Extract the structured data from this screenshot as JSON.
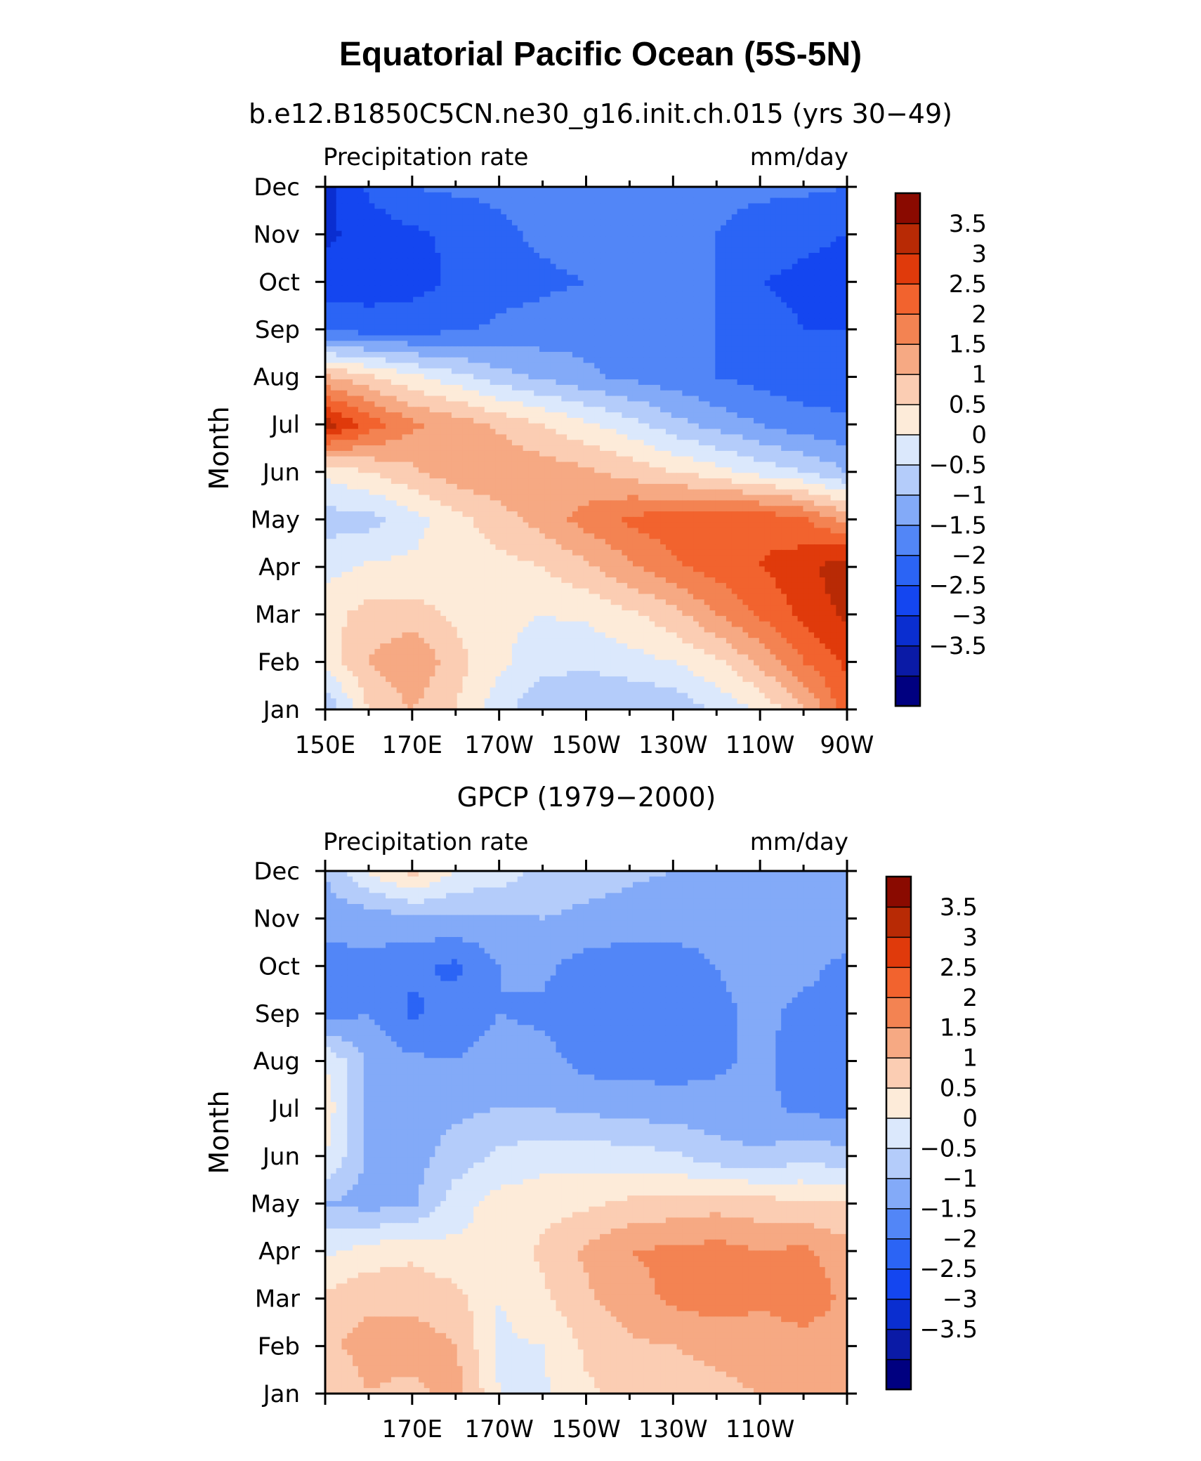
{
  "main_title": "Equatorial Pacific Ocean (5S-5N)",
  "chart_data": [
    {
      "type": "heatmap",
      "title": "b.e12.B1850C5CN.ne30_g16.init.ch.015 (yrs 30−49)",
      "left_label": "Precipitation rate",
      "right_label": "mm/day",
      "ylabel": "Month",
      "xlabel": "",
      "y_ticks": [
        "Jan",
        "Feb",
        "Mar",
        "Apr",
        "May",
        "Jun",
        "Jul",
        "Aug",
        "Sep",
        "Oct",
        "Nov",
        "Dec"
      ],
      "x_ticks": [
        "150E",
        "170E",
        "170W",
        "150W",
        "130W",
        "110W",
        "90W"
      ],
      "x_tick_positions_deg_east": [
        150,
        170,
        190,
        210,
        230,
        250,
        270
      ],
      "x_range_deg_east": [
        150,
        270
      ],
      "colorbar_levels": [
        "3.5",
        "3",
        "2.5",
        "2",
        "1.5",
        "1",
        "0.5",
        "0",
        "−0.5",
        "−1",
        "−1.5",
        "−2",
        "−2.5",
        "−3",
        "−3.5"
      ],
      "grid_lon_deg_east": [
        150,
        160,
        170,
        180,
        190,
        200,
        210,
        220,
        230,
        240,
        250,
        260,
        270
      ],
      "grid_months": [
        "Jan",
        "Feb",
        "Mar",
        "Apr",
        "May",
        "Jun",
        "Jul",
        "Aug",
        "Sep",
        "Oct",
        "Nov",
        "Dec"
      ],
      "values": [
        [
          -0.5,
          1.0,
          1.5,
          1.0,
          0.2,
          -0.4,
          -0.5,
          -0.5,
          -0.4,
          0.1,
          0.6,
          1.4,
          2.8
        ],
        [
          0.7,
          1.5,
          2.0,
          1.2,
          0.6,
          0.2,
          0.1,
          0.3,
          0.5,
          0.9,
          1.6,
          2.5,
          3.1
        ],
        [
          0.8,
          1.2,
          1.2,
          0.9,
          0.6,
          0.5,
          0.6,
          0.9,
          1.3,
          2.0,
          2.6,
          3.1,
          3.6
        ],
        [
          0.3,
          0.6,
          0.6,
          0.7,
          0.8,
          1.0,
          1.4,
          1.9,
          2.4,
          2.7,
          3.0,
          3.3,
          3.9
        ],
        [
          -0.2,
          -0.2,
          0.3,
          0.8,
          1.3,
          1.7,
          2.2,
          2.6,
          2.8,
          2.9,
          2.9,
          2.6,
          1.8
        ],
        [
          0.6,
          1.0,
          1.4,
          1.8,
          1.9,
          1.8,
          1.6,
          1.3,
          1.0,
          0.7,
          0.3,
          0.0,
          -0.5
        ],
        [
          3.8,
          2.8,
          2.1,
          1.8,
          1.4,
          1.0,
          0.6,
          0.2,
          -0.3,
          -0.7,
          -1.0,
          -1.3,
          -1.4
        ],
        [
          1.6,
          1.1,
          0.6,
          0.2,
          -0.3,
          -0.6,
          -0.9,
          -1.1,
          -1.3,
          -1.5,
          -1.7,
          -1.8,
          -1.8
        ],
        [
          -1.7,
          -1.7,
          -1.7,
          -1.6,
          -1.4,
          -1.3,
          -1.2,
          -1.2,
          -1.3,
          -1.5,
          -1.8,
          -2.0,
          -2.0
        ],
        [
          -2.2,
          -2.3,
          -2.2,
          -1.9,
          -1.7,
          -1.6,
          -1.5,
          -1.4,
          -1.4,
          -1.5,
          -2.0,
          -2.1,
          -2.2
        ],
        [
          -2.6,
          -2.3,
          -2.1,
          -1.9,
          -1.6,
          -1.4,
          -1.3,
          -1.3,
          -1.4,
          -1.5,
          -1.7,
          -1.9,
          -2.0
        ],
        [
          -2.7,
          -1.9,
          -1.5,
          -1.4,
          -1.4,
          -1.4,
          -1.4,
          -1.4,
          -1.4,
          -1.4,
          -1.4,
          -1.4,
          -1.5
        ]
      ]
    },
    {
      "type": "heatmap",
      "title": "GPCP (1979−2000)",
      "left_label": "Precipitation rate",
      "right_label": "mm/day",
      "ylabel": "Month",
      "xlabel": "",
      "y_ticks": [
        "Jan",
        "Feb",
        "Mar",
        "Apr",
        "May",
        "Jun",
        "Jul",
        "Aug",
        "Sep",
        "Oct",
        "Nov",
        "Dec"
      ],
      "x_ticks": [
        "170E",
        "170W",
        "150W",
        "130W",
        "110W"
      ],
      "x_tick_positions_deg_east": [
        170,
        190,
        210,
        230,
        250
      ],
      "x_range_deg_east": [
        150,
        270
      ],
      "colorbar_levels": [
        "3.5",
        "3",
        "2.5",
        "2",
        "1.5",
        "1",
        "0.5",
        "0",
        "−0.5",
        "−1",
        "−1.5",
        "−2",
        "−2.5",
        "−3",
        "−3.5"
      ],
      "grid_lon_deg_east": [
        150,
        160,
        170,
        180,
        190,
        200,
        210,
        220,
        230,
        240,
        250,
        260,
        270
      ],
      "grid_months": [
        "Jan",
        "Feb",
        "Mar",
        "Apr",
        "May",
        "Jun",
        "Jul",
        "Aug",
        "Sep",
        "Oct",
        "Nov",
        "Dec"
      ],
      "values": [
        [
          1.0,
          1.5,
          1.3,
          1.8,
          0.5,
          0.4,
          0.9,
          1.2,
          1.3,
          1.4,
          1.5,
          1.6,
          1.6
        ],
        [
          1.4,
          1.7,
          1.8,
          1.5,
          0.4,
          0.5,
          1.1,
          1.4,
          1.5,
          1.6,
          1.7,
          1.8,
          1.7
        ],
        [
          1.1,
          1.4,
          1.3,
          1.2,
          0.5,
          0.9,
          1.4,
          1.8,
          2.1,
          2.3,
          2.1,
          2.3,
          1.9
        ],
        [
          0.4,
          0.7,
          0.9,
          0.6,
          0.6,
          1.1,
          1.6,
          2.0,
          2.1,
          2.2,
          2.0,
          2.1,
          1.7
        ],
        [
          -0.5,
          -0.7,
          -0.6,
          0.3,
          0.7,
          0.8,
          0.9,
          1.1,
          1.2,
          1.3,
          1.2,
          1.1,
          1.0
        ],
        [
          0.5,
          -0.6,
          -0.7,
          -0.3,
          0.1,
          0.3,
          0.3,
          0.2,
          0.1,
          -0.3,
          -0.4,
          -0.2,
          -0.3
        ],
        [
          0.8,
          -0.6,
          -0.7,
          -0.6,
          -0.5,
          -0.5,
          -0.6,
          -0.7,
          -0.8,
          -0.8,
          -0.9,
          -1.1,
          -1.2
        ],
        [
          0.5,
          -0.6,
          -0.9,
          -1.0,
          -0.8,
          -0.8,
          -1.2,
          -1.2,
          -1.2,
          -1.1,
          -0.9,
          -1.2,
          -1.3
        ],
        [
          -1.2,
          -1.0,
          -1.6,
          -1.3,
          -1.0,
          -1.1,
          -1.3,
          -1.3,
          -1.2,
          -1.1,
          -0.9,
          -1.1,
          -1.1
        ],
        [
          -1.2,
          -1.1,
          -1.4,
          -1.6,
          -1.0,
          -0.9,
          -1.2,
          -1.3,
          -1.2,
          -1.0,
          -0.8,
          -0.9,
          -1.1
        ],
        [
          -0.8,
          -0.8,
          -0.6,
          -0.6,
          -0.6,
          -0.5,
          -0.6,
          -0.7,
          -0.8,
          -0.8,
          -0.8,
          -0.7,
          -0.7
        ],
        [
          -0.5,
          0.6,
          1.2,
          0.5,
          0.3,
          -0.2,
          -0.3,
          -0.4,
          -0.5,
          -0.5,
          -0.5,
          -0.5,
          -0.6
        ]
      ]
    }
  ],
  "colorbar_colors": [
    "#000080",
    "#0a1aa6",
    "#0a2ed0",
    "#1446f0",
    "#2b64f5",
    "#5286f7",
    "#83aaf8",
    "#b4ccfa",
    "#dbe8fc",
    "#fdebd9",
    "#fbcdb3",
    "#f6a983",
    "#f38352",
    "#f2632e",
    "#e03a0b",
    "#b82a05",
    "#8a0a00"
  ]
}
